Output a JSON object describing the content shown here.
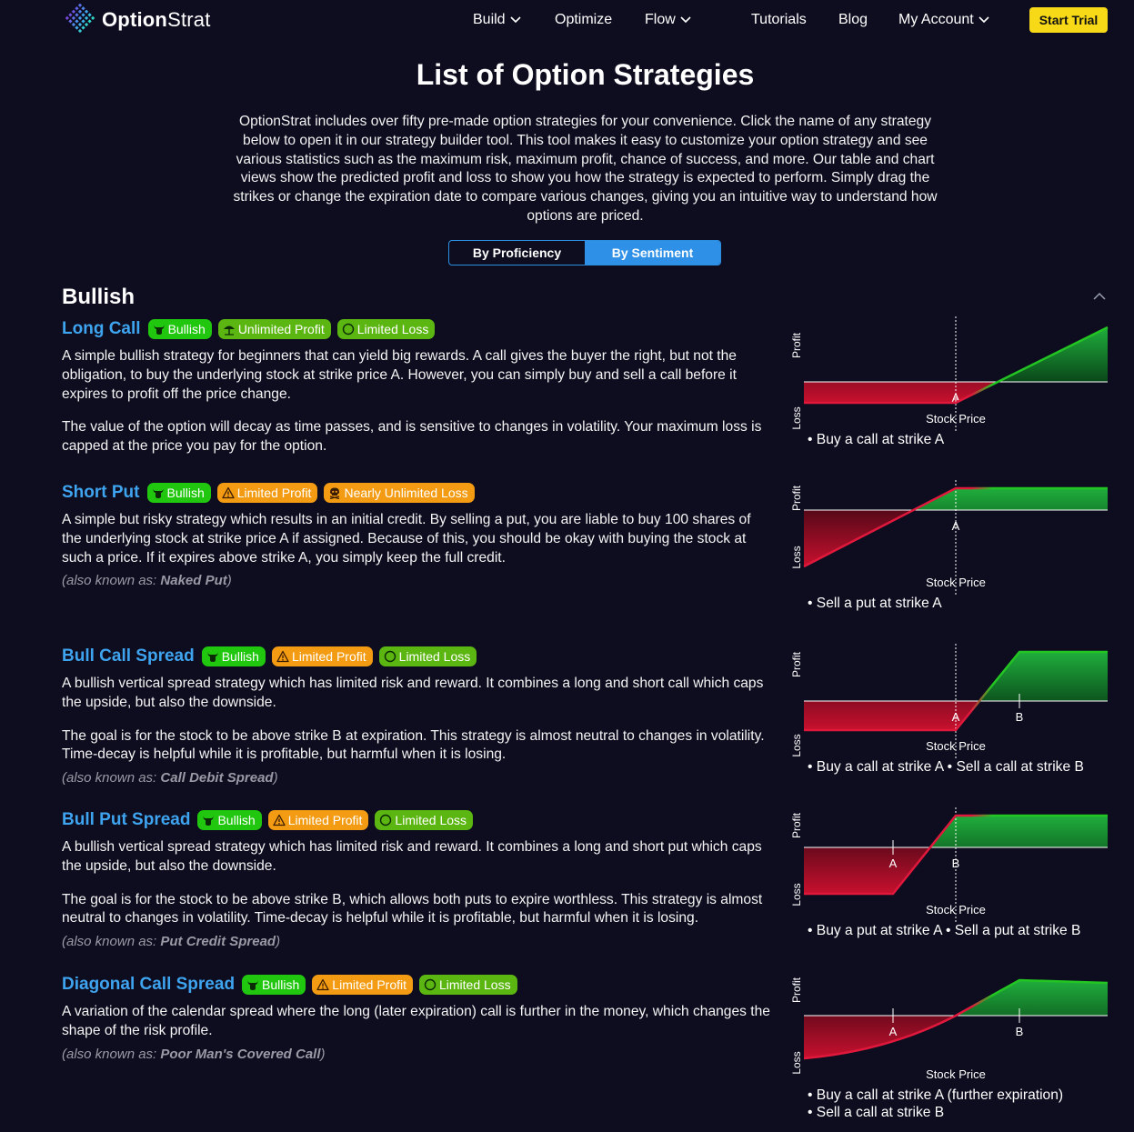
{
  "nav": {
    "logo_text_1": "Option",
    "logo_text_2": "Strat",
    "items": [
      "Build",
      "Optimize",
      "Flow",
      "Tutorials",
      "Blog",
      "My Account"
    ],
    "cta": "Start Trial"
  },
  "page": {
    "title": "List of Option Strategies",
    "intro": "OptionStrat includes over fifty pre-made option strategies for your convenience. Click the name of any strategy below to open it in our strategy builder tool. This tool makes it easy to customize your option strategy and see various statistics such as the maximum risk, maximum profit, chance of success, and more. Our table and chart views show the predicted profit and loss to show you how the strategy is expected to perform. Simply drag the strikes or change the expiration date to compare various changes, giving you an intuitive way to understand how options are priced.",
    "toggle": [
      "By Proficiency",
      "By Sentiment"
    ],
    "section": "Bullish"
  },
  "chart_labels": {
    "profit": "Profit",
    "loss": "Loss",
    "xaxis": "Stock Price"
  },
  "colors": {
    "accent": "#3fa4ef",
    "cta": "#f7d917",
    "badge_green": "#21c60f",
    "badge_lime": "#5bb611",
    "badge_orange": "#f39b12",
    "profit": "#22c521",
    "loss": "#e0183c"
  },
  "strategies": [
    {
      "name": "Long Call",
      "badges": [
        {
          "text": "Bullish",
          "icon": "bull-icon"
        },
        {
          "text": "Unlimited Profit",
          "icon": "beach-umbrella-icon"
        },
        {
          "text": "Limited Loss",
          "icon": "circle-icon"
        }
      ],
      "paragraphs": [
        "A simple bullish strategy for beginners that can yield big rewards. A call gives the buyer the right, but not the obligation, to buy the underlying stock at strike price A. However, you can simply buy and sell a call before it expires to profit off the price change.",
        "The value of the option will decay as time passes, and is sensitive to changes in volatility. Your maximum loss is capped at the price you pay for the option."
      ],
      "aka_prefix": "",
      "aka": "",
      "legs": [
        "Buy a call at strike A"
      ]
    },
    {
      "name": "Short Put",
      "badges": [
        {
          "text": "Bullish",
          "icon": "bull-icon"
        },
        {
          "text": "Limited Profit",
          "icon": "warning-icon"
        },
        {
          "text": "Nearly Unlimited Loss",
          "icon": "skull-icon"
        }
      ],
      "paragraphs": [
        "A simple but risky strategy which results in an initial credit. By selling a put, you are liable to buy 100 shares of the underlying stock at strike price A if assigned. Because of this, you should be okay with buying the stock at such a price. If it expires above strike A, you simply keep the full credit."
      ],
      "aka_prefix": "(also known as: ",
      "aka": "Naked Put",
      "legs": [
        "Sell a put at strike A"
      ]
    },
    {
      "name": "Bull Call Spread",
      "badges": [
        {
          "text": "Bullish",
          "icon": "bull-icon"
        },
        {
          "text": "Limited Profit",
          "icon": "warning-icon"
        },
        {
          "text": "Limited Loss",
          "icon": "circle-icon"
        }
      ],
      "paragraphs": [
        "A bullish vertical spread strategy which has limited risk and reward. It combines a long and short call which caps the upside, but also the downside.",
        "The goal is for the stock to be above strike B at expiration. This strategy is almost neutral to changes in volatility. Time-decay is helpful while it is profitable, but harmful when it is losing."
      ],
      "aka_prefix": "(also known as: ",
      "aka": "Call Debit Spread",
      "legs": [
        "Buy a call at strike A",
        "Sell a call at strike B"
      ]
    },
    {
      "name": "Bull Put Spread",
      "badges": [
        {
          "text": "Bullish",
          "icon": "bull-icon"
        },
        {
          "text": "Limited Profit",
          "icon": "warning-icon"
        },
        {
          "text": "Limited Loss",
          "icon": "circle-icon"
        }
      ],
      "paragraphs": [
        "A bullish vertical spread strategy which has limited risk and reward. It combines a long and short put which caps the upside, but also the downside.",
        "The goal is for the stock to be above strike B, which allows both puts to expire worthless. This strategy is almost neutral to changes in volatility. Time-decay is helpful while it is profitable, but harmful when it is losing."
      ],
      "aka_prefix": "(also known as: ",
      "aka": "Put Credit Spread",
      "legs": [
        "Buy a put at strike A",
        "Sell a put at strike B"
      ]
    },
    {
      "name": "Diagonal Call Spread",
      "badges": [
        {
          "text": "Bullish",
          "icon": "bull-icon"
        },
        {
          "text": "Limited Profit",
          "icon": "warning-icon"
        },
        {
          "text": "Limited Loss",
          "icon": "circle-icon"
        }
      ],
      "paragraphs": [
        "A variation of the calendar spread where the long (later expiration) call is further in the money, which changes the shape of the risk profile."
      ],
      "aka_prefix": "(also known as: ",
      "aka": "Poor Man's Covered Call",
      "legs": [
        "Buy a call at strike A (further expiration)",
        "Sell a call at strike B"
      ]
    }
  ]
}
